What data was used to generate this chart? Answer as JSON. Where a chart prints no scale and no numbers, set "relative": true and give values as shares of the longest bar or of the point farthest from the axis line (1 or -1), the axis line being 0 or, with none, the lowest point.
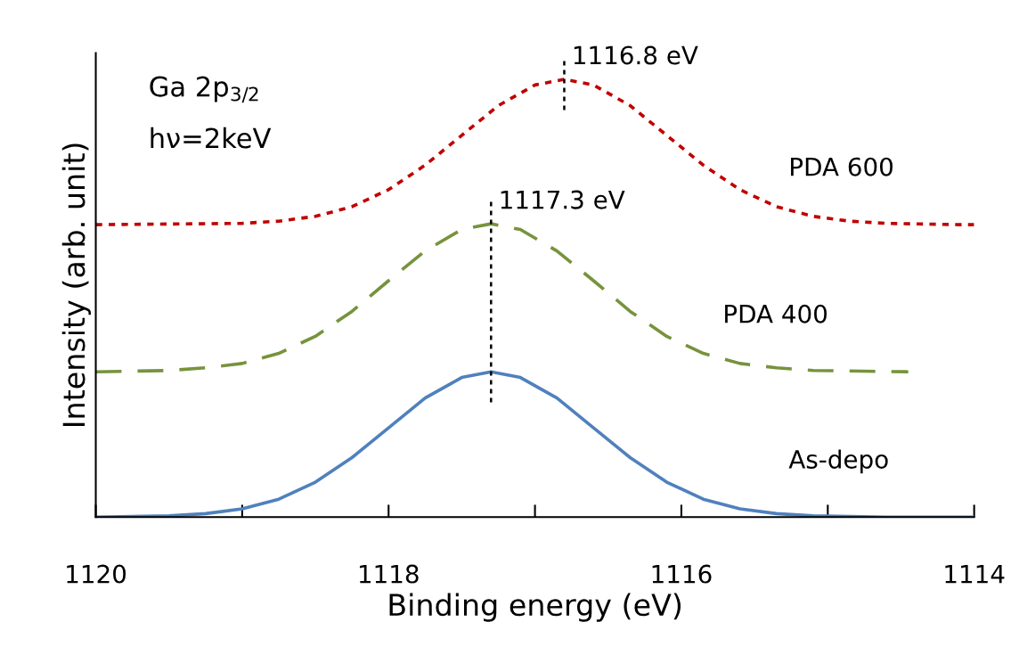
{
  "chart_data": {
    "type": "line",
    "relative": true,
    "xlabel": "Binding energy (eV)",
    "ylabel": "Intensity (arb. unit)",
    "xlim": [
      1120,
      1114
    ],
    "xticks": [
      1120,
      {
        "value": 1119,
        "label": null
      },
      1118,
      {
        "value": 1117,
        "label": null
      },
      1116,
      {
        "value": 1115,
        "label": null
      },
      1114
    ],
    "tick_labels": "x",
    "grid": false,
    "legend": false,
    "series": [
      {
        "name": "PDA 600",
        "color": "#c00000",
        "line_style": "dotted",
        "x": [
          1120,
          1119,
          1118.75,
          1118.5,
          1118.25,
          1118,
          1117.75,
          1117.5,
          1117.25,
          1117,
          1116.8,
          1116.6,
          1116.35,
          1116.1,
          1115.85,
          1115.6,
          1115.35,
          1115.1,
          1114.85,
          1114.6,
          1114.1,
          1114
        ],
        "values": [
          0.668,
          0.671,
          0.676,
          0.687,
          0.709,
          0.748,
          0.804,
          0.872,
          0.94,
          0.987,
          1.0,
          0.987,
          0.94,
          0.872,
          0.804,
          0.748,
          0.709,
          0.687,
          0.676,
          0.671,
          0.668,
          0.668
        ]
      },
      {
        "name": "PDA 400",
        "color": "#77933c",
        "line_style": "dashed",
        "x": [
          1120,
          1119.5,
          1119.25,
          1119,
          1118.75,
          1118.5,
          1118.25,
          1118,
          1117.75,
          1117.5,
          1117.3,
          1117.1,
          1116.85,
          1116.6,
          1116.35,
          1116.1,
          1115.85,
          1115.6,
          1115.35,
          1115.1,
          1114.45
        ],
        "values": [
          0.332,
          0.335,
          0.341,
          0.351,
          0.374,
          0.413,
          0.47,
          0.54,
          0.608,
          0.657,
          0.67,
          0.657,
          0.608,
          0.54,
          0.47,
          0.413,
          0.374,
          0.351,
          0.341,
          0.335,
          0.332
        ]
      },
      {
        "name": "As-depo",
        "color": "#4f81bd",
        "line_style": "solid",
        "x": [
          1120,
          1119.5,
          1119.25,
          1119,
          1118.75,
          1118.5,
          1118.25,
          1118,
          1117.75,
          1117.5,
          1117.3,
          1117.1,
          1116.85,
          1116.6,
          1116.35,
          1116.1,
          1115.85,
          1115.6,
          1115.35,
          1115.1,
          1114.6,
          1114
        ],
        "values": [
          0,
          0.003,
          0.008,
          0.019,
          0.041,
          0.08,
          0.136,
          0.204,
          0.272,
          0.319,
          0.332,
          0.319,
          0.272,
          0.204,
          0.136,
          0.08,
          0.041,
          0.019,
          0.008,
          0.003,
          0,
          0
        ]
      }
    ],
    "ref_lines": [
      {
        "axis": "x",
        "value": 1116.8,
        "label": "1116.8 eV",
        "color": "#000000",
        "line_style": "dotted"
      },
      {
        "axis": "x",
        "value": 1117.3,
        "label": "1117.3 eV",
        "color": "#000000",
        "line_style": "dotted"
      }
    ],
    "annotations": [
      "Ga 2p$_{3/2}$",
      "hν=2keV"
    ]
  }
}
